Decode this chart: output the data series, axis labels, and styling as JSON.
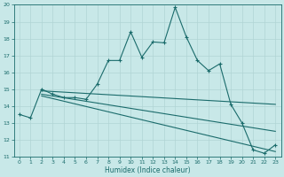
{
  "xlabel": "Humidex (Indice chaleur)",
  "xlim": [
    -0.5,
    23.5
  ],
  "ylim": [
    11,
    20
  ],
  "xticks": [
    0,
    1,
    2,
    3,
    4,
    5,
    6,
    7,
    8,
    9,
    10,
    11,
    12,
    13,
    14,
    15,
    16,
    17,
    18,
    19,
    20,
    21,
    22,
    23
  ],
  "yticks": [
    11,
    12,
    13,
    14,
    15,
    16,
    17,
    18,
    19,
    20
  ],
  "bg_color": "#c8e8e8",
  "grid_color": "#b0d4d4",
  "line_color": "#1a6b6b",
  "line1_x": [
    0,
    1,
    2,
    3,
    4,
    5,
    6,
    7,
    8,
    9,
    10,
    11,
    12,
    13,
    14,
    15,
    16,
    17,
    18,
    19,
    20,
    21,
    22,
    23
  ],
  "line1_y": [
    13.5,
    13.3,
    15.0,
    14.7,
    14.5,
    14.5,
    14.4,
    15.3,
    16.7,
    16.7,
    18.4,
    16.9,
    17.8,
    17.75,
    19.85,
    18.1,
    16.7,
    16.1,
    16.5,
    14.1,
    13.0,
    11.4,
    11.2,
    11.7
  ],
  "line2_x": [
    2,
    23
  ],
  "line2_y": [
    14.9,
    14.1
  ],
  "line3_x": [
    2,
    23
  ],
  "line3_y": [
    14.7,
    12.5
  ],
  "line4_x": [
    2,
    23
  ],
  "line4_y": [
    14.6,
    11.3
  ],
  "marker": "+"
}
